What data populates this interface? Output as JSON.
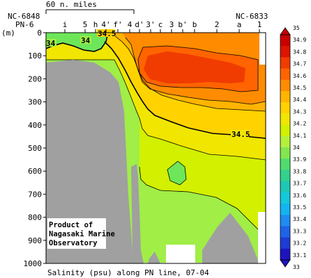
{
  "chart_data": {
    "type": "heatmap",
    "title": "Salinity (psu) along PN line, 07-04",
    "ylabel": "(m)",
    "ylim": [
      1000,
      0
    ],
    "yticks": [
      "0",
      "100",
      "200",
      "300",
      "400",
      "500",
      "600",
      "700",
      "800",
      "900",
      "1000"
    ],
    "scale_label": "60 n. miles",
    "station_left_ids": [
      "NC-6848",
      "PN-6"
    ],
    "station_right_id": "NC-6833",
    "stations": [
      "i",
      "5",
      "h",
      "4'",
      "f'",
      "4",
      "d'",
      "3'",
      "c",
      "3",
      "b'",
      "b",
      "2",
      "a",
      "1"
    ],
    "contour_labels": [
      "34",
      "34",
      "34.5",
      "34.5"
    ],
    "colorbar": {
      "levels": [
        "35",
        "34.9",
        "34.8",
        "34.7",
        "34.6",
        "34.5",
        "34.4",
        "34.3",
        "34.2",
        "34.1",
        "34",
        "33.9",
        "33.8",
        "33.7",
        "33.6",
        "33.5",
        "33.4",
        "33.3",
        "33.2",
        "33.1",
        "33"
      ],
      "colors": [
        "#c80000",
        "#dc1400",
        "#f03c00",
        "#ff6400",
        "#ff8c00",
        "#ffb400",
        "#ffd200",
        "#f0e600",
        "#d2f000",
        "#b4f03c",
        "#82e650",
        "#50dc6e",
        "#32d28c",
        "#1ec8b4",
        "#14c8dc",
        "#14b4f0",
        "#1e8cf0",
        "#1e64e6",
        "#1e3cd2",
        "#1e14be"
      ]
    },
    "colors": {
      "s34_0": "#6ee65a",
      "s34_1": "#a0ee46",
      "s34_2": "#d2f000",
      "s34_3": "#f0e600",
      "s34_4": "#ffd200",
      "s34_5": "#ffb400",
      "s34_6": "#ff8c00",
      "s34_7": "#ff6400",
      "s34_8": "#f03c00",
      "bottom": "#a0a0a0"
    }
  },
  "note": {
    "line1": "Product of",
    "line2": "Nagasaki Marine",
    "line3": "Observatory"
  }
}
